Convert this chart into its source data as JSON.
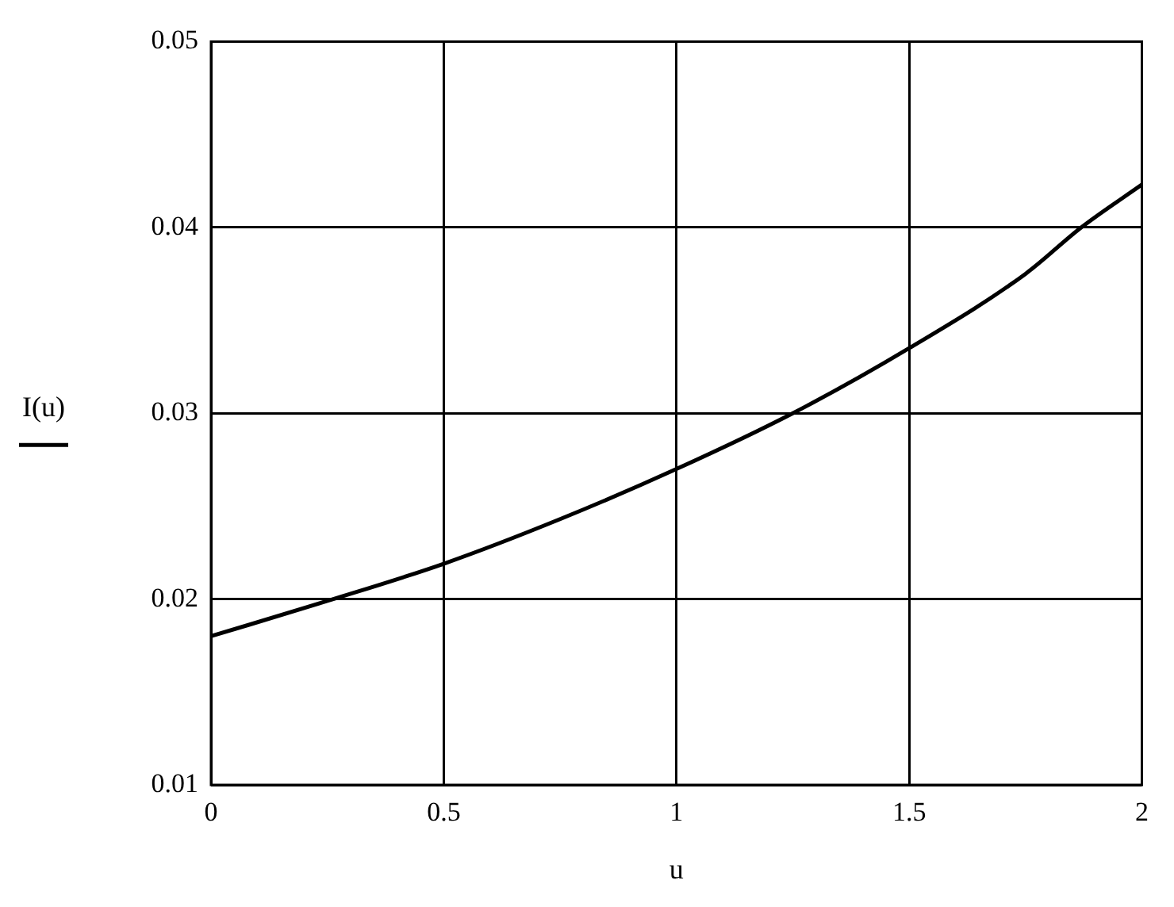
{
  "chart_data": {
    "type": "line",
    "xlabel": "u",
    "ylabel": "I(u)",
    "x": [
      0,
      0.25,
      0.5,
      0.75,
      1,
      1.25,
      1.5,
      1.75,
      1.87,
      2
    ],
    "series": [
      {
        "color": "#000000",
        "values": [
          0.018,
          0.0199,
          0.0219,
          0.0243,
          0.027,
          0.03,
          0.0335,
          0.0375,
          0.04,
          0.0423
        ]
      }
    ],
    "xlim": [
      0,
      2
    ],
    "xticks": [
      0,
      0.5,
      1,
      1.5,
      2
    ],
    "ylim": [
      0.01,
      0.05
    ],
    "yticks": [
      0.01,
      0.02,
      0.03,
      0.04,
      0.05
    ],
    "grid": true,
    "marker": "none",
    "line_style": "solid"
  }
}
